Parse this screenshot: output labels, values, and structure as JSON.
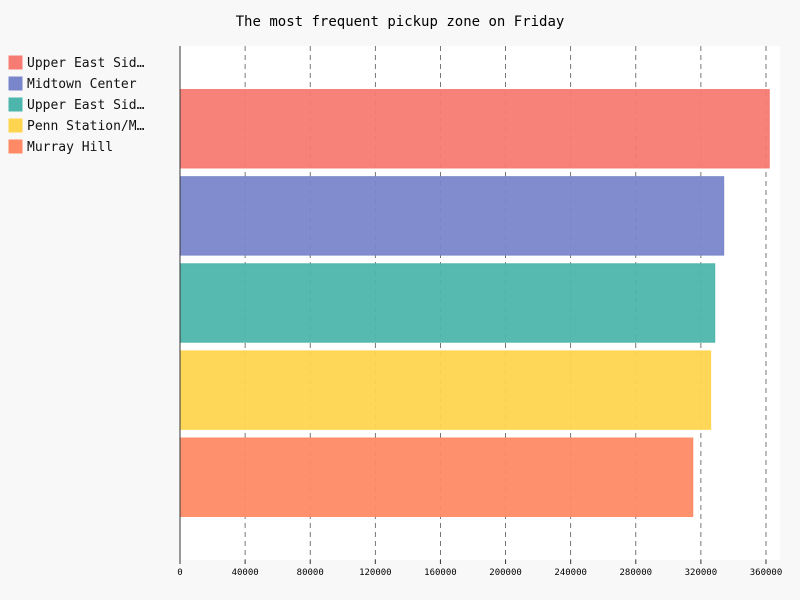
{
  "chart_data": {
    "type": "bar",
    "orientation": "horizontal",
    "title": "The most frequent pickup zone on Friday",
    "xlabel": "",
    "ylabel": "",
    "xlim": [
      0,
      360000
    ],
    "x_ticks": [
      "0",
      "40000",
      "80000",
      "120000",
      "160000",
      "200000",
      "240000",
      "280000",
      "320000",
      "360000"
    ],
    "x_tick_values": [
      0,
      40000,
      80000,
      120000,
      160000,
      200000,
      240000,
      280000,
      320000,
      360000
    ],
    "grid": "vertical-dashed",
    "legend_position": "top-left",
    "series": [
      {
        "name": "Upper East Sid…",
        "value": 362000,
        "color": "#f67b72"
      },
      {
        "name": "Midtown Center",
        "value": 334000,
        "color": "#7986cb"
      },
      {
        "name": "Upper East Sid…",
        "value": 328500,
        "color": "#4db6ac"
      },
      {
        "name": "Penn Station/M…",
        "value": 326000,
        "color": "#ffd54f"
      },
      {
        "name": "Murray Hill",
        "value": 315000,
        "color": "#ff8a65"
      }
    ]
  }
}
